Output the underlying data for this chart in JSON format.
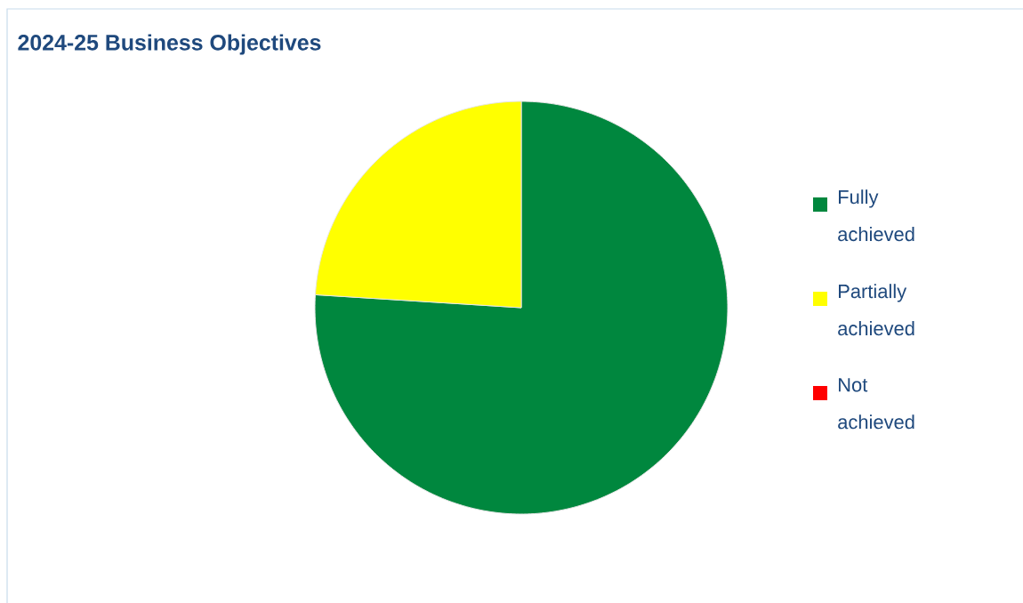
{
  "chart_data": {
    "type": "pie",
    "title": "2024-25 Business Objectives",
    "categories": [
      "Fully achieved",
      "Partially achieved",
      "Not achieved"
    ],
    "values": [
      76,
      24,
      0
    ],
    "colors": [
      "#00873e",
      "#ffff00",
      "#ff0000"
    ],
    "legend": "right"
  }
}
